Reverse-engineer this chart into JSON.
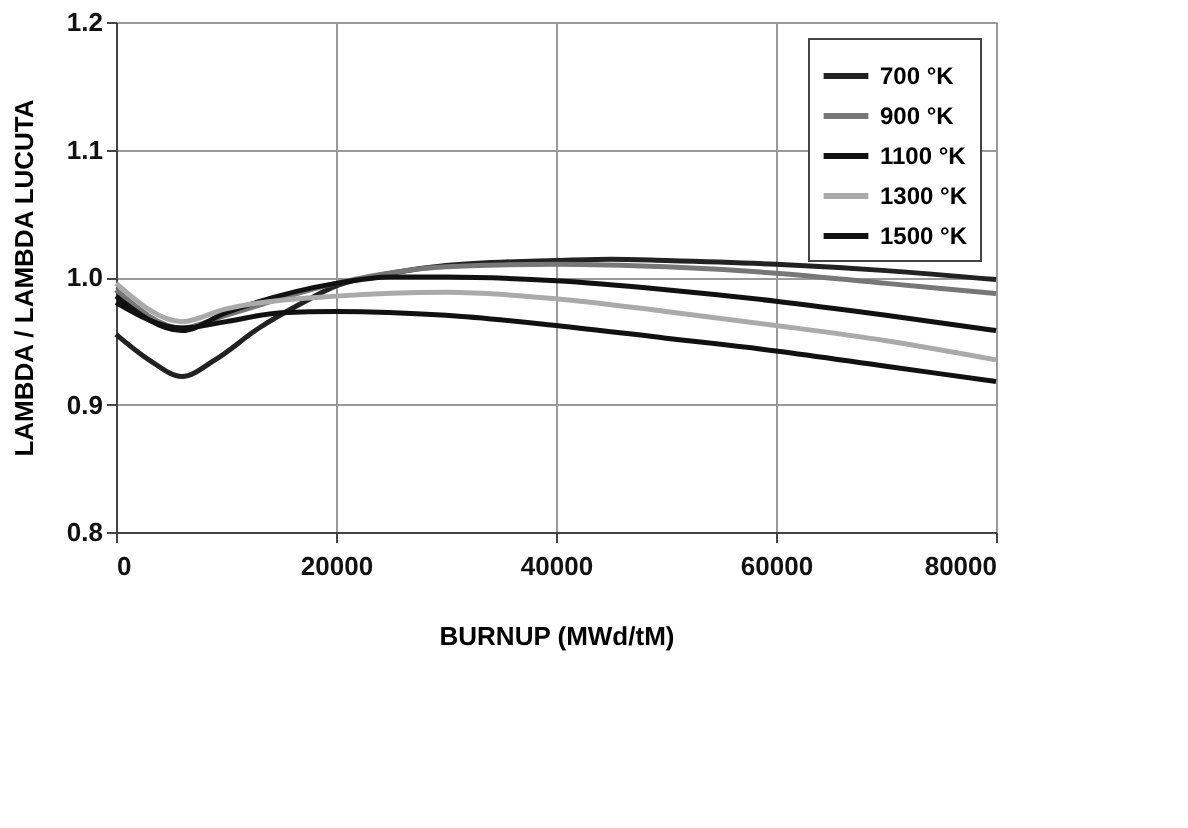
{
  "chart_data": {
    "type": "line",
    "xlabel": "BURNUP (MWd/tM)",
    "ylabel": "LAMBDA / LAMBDA LUCUTA",
    "xlim": [
      0,
      80000
    ],
    "xticks": [
      0,
      20000,
      40000,
      60000,
      80000
    ],
    "ylim": [
      0.8,
      1.2
    ],
    "yticks": [
      0.8,
      0.9,
      {
        "value": 1.0,
        "label": "1.0"
      },
      1.1,
      1.2
    ],
    "grid": true,
    "legend": "top right",
    "marker": "none",
    "line_style": "solid",
    "series": [
      {
        "name": "700 °K",
        "color": "#222222",
        "x": [
          0,
          3000,
          6000,
          9000,
          13000,
          17000,
          20000,
          25000,
          30000,
          40000,
          45000,
          50000,
          60000,
          70000,
          80000
        ],
        "values": [
          0.955,
          0.935,
          0.922,
          0.935,
          0.96,
          0.98,
          0.993,
          1.003,
          1.009,
          1.013,
          1.014,
          1.013,
          1.01,
          1.005,
          0.998
        ]
      },
      {
        "name": "900 °K",
        "color": "#777777",
        "x": [
          0,
          6000,
          10000,
          20000,
          30000,
          40000,
          50000,
          60000,
          70000,
          80000
        ],
        "values": [
          0.99,
          0.96,
          0.97,
          0.995,
          1.008,
          1.01,
          1.008,
          1.003,
          0.995,
          0.987
        ]
      },
      {
        "name": "1100 °K",
        "color": "#111111",
        "x": [
          0,
          6000,
          10000,
          20000,
          25000,
          30000,
          40000,
          50000,
          60000,
          70000,
          80000
        ],
        "values": [
          0.985,
          0.958,
          0.972,
          0.995,
          1.0,
          1.0,
          0.997,
          0.99,
          0.981,
          0.97,
          0.958
        ]
      },
      {
        "name": "1300 °K",
        "color": "#aaaaaa",
        "x": [
          0,
          6000,
          10000,
          20000,
          30000,
          40000,
          50000,
          60000,
          70000,
          80000
        ],
        "values": [
          0.995,
          0.965,
          0.975,
          0.985,
          0.988,
          0.983,
          0.973,
          0.962,
          0.95,
          0.935
        ]
      },
      {
        "name": "1500 °K",
        "color": "#111111",
        "x": [
          0,
          6000,
          10000,
          15000,
          20000,
          30000,
          40000,
          50000,
          60000,
          70000,
          80000
        ],
        "values": [
          0.98,
          0.96,
          0.965,
          0.972,
          0.973,
          0.97,
          0.962,
          0.952,
          0.942,
          0.93,
          0.918
        ]
      }
    ]
  }
}
